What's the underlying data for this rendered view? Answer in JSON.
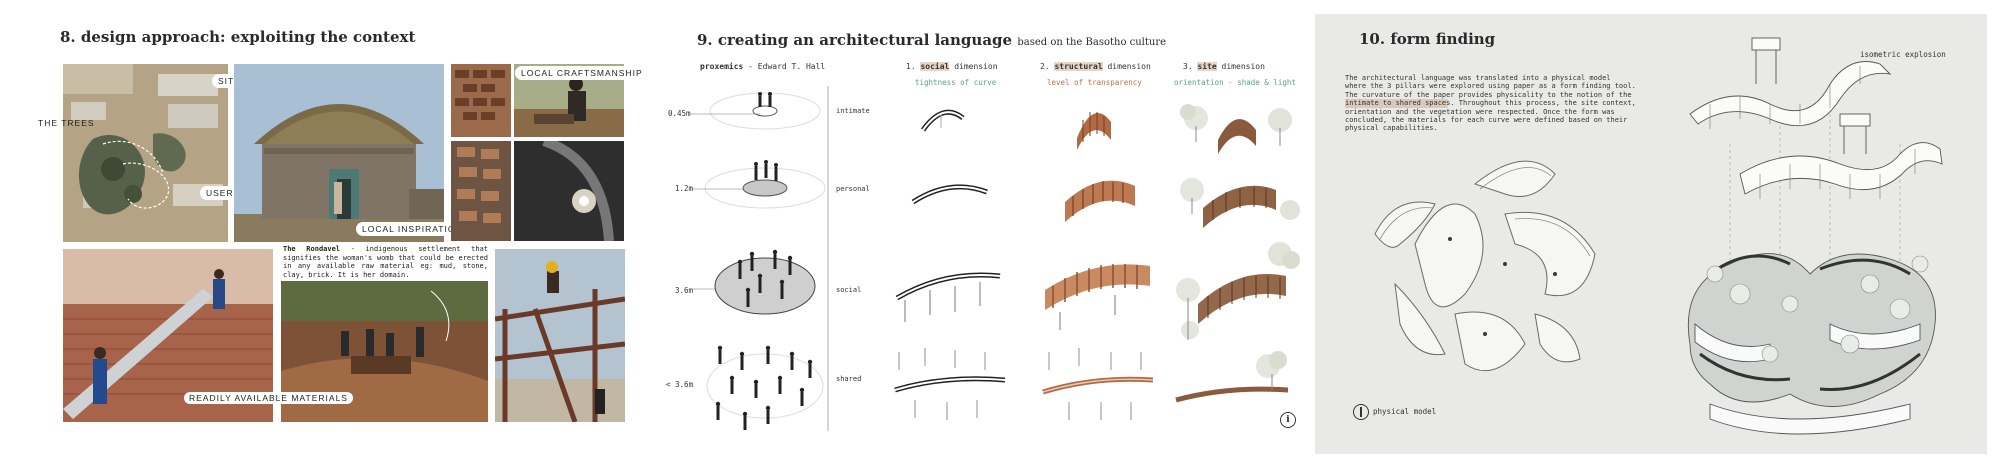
{
  "section8": {
    "title": "8. design approach: exploiting the context",
    "labels": {
      "trees": "THE TREES",
      "site": "SITE",
      "users": "USERS",
      "craft": "LOCAL CRAFTSMANSHIP",
      "inspiration": "LOCAL INSPIRATION",
      "materials": "READILY AVAILABLE MATERIALS"
    },
    "rondavel_title": "The Rondavel",
    "rondavel_text": " - indigenous settlement that signifies the woman's womb that could be erected in any available raw material eg: mud, stone, clay, brick. It is her domain."
  },
  "section9": {
    "title": "9. creating an architectural language",
    "subtitle": "based on the Basotho culture",
    "proxemics_bold": "proxemics",
    "proxemics_rest": " - Edward T. Hall",
    "distances": [
      "0.45m",
      "1.2m",
      "3.6m",
      "< 3.6m"
    ],
    "rows": [
      "intimate",
      "personal",
      "social",
      "shared"
    ],
    "columns": [
      {
        "num": "1.",
        "word": "social",
        "rest": " dimension",
        "sub": "tightness of curve",
        "color": "#5aa08c"
      },
      {
        "num": "2.",
        "word": "structural",
        "rest": " dimension",
        "sub": "level of transparency",
        "color": "#c0714a"
      },
      {
        "num": "3.",
        "word": "site",
        "rest": " dimension",
        "sub": "orientation - shade & light",
        "color": "#5aa08c"
      }
    ],
    "info_glyph": "i"
  },
  "section10": {
    "title": "10. form finding",
    "para_lines": [
      "The architectural language was translated into a physical model",
      "where the 3 pillars were explored using paper as a form finding tool.",
      "The curvature of the paper provides physicality to the notion of the",
      "intimate to shared spaces. Throughout this process, the site context,",
      "orientation and the vegetation were respected. Once the form was",
      "concluded, the materials for each curve were defined based on their",
      "physical capabilities."
    ],
    "iso_label": "isometric explosion",
    "model_label": "physical model"
  }
}
